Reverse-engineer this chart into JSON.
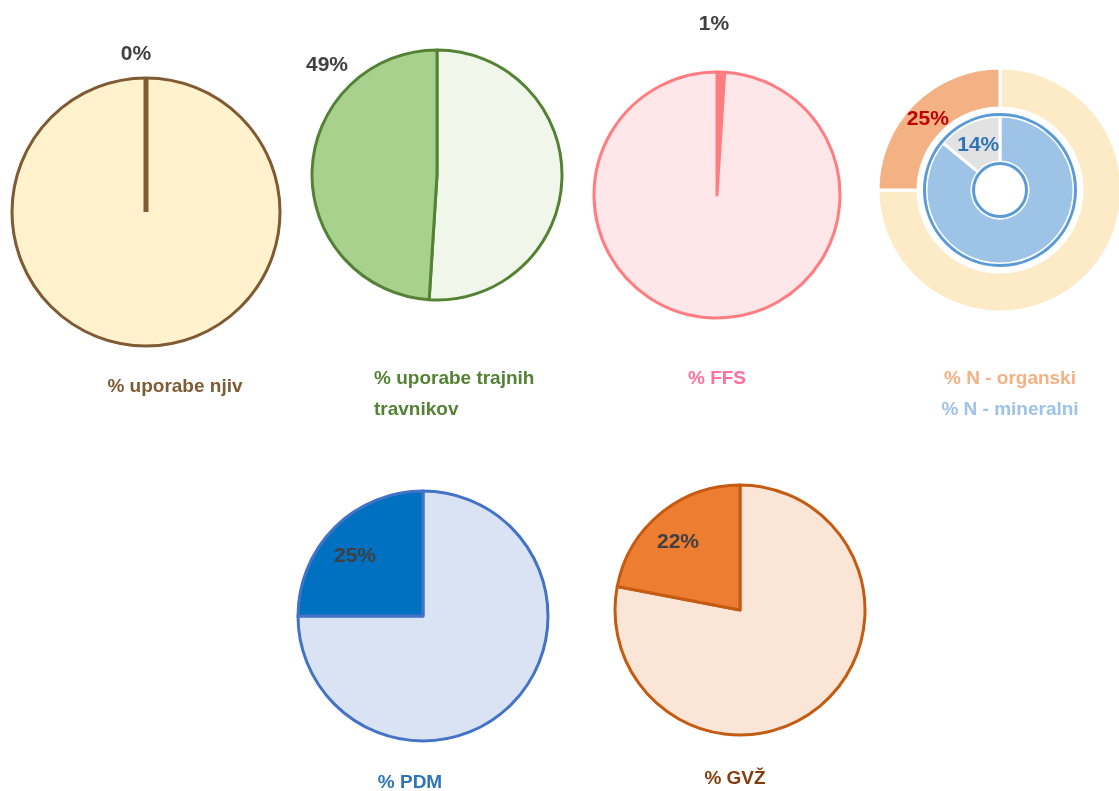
{
  "chart_data": [
    {
      "type": "pie",
      "title": "% uporabe njiv",
      "categories": [
        null,
        null
      ],
      "values": [
        100,
        0
      ],
      "colors": [
        "#fff2cc",
        "#7f5a32"
      ],
      "value_labels": [
        null,
        "0%"
      ]
    },
    {
      "type": "pie",
      "title": "% uporabe trajnih travnikov",
      "categories": [
        null,
        null
      ],
      "values": [
        51,
        49
      ],
      "colors": [
        "#f0f7ea",
        "#a9d18e"
      ],
      "value_labels": [
        null,
        "49%"
      ]
    },
    {
      "type": "pie",
      "title": "% FFS",
      "categories": [
        null,
        null
      ],
      "values": [
        1,
        99
      ],
      "colors": [
        "#ff7c80",
        "#ffe6e8"
      ],
      "value_labels": [
        "1%",
        null
      ]
    },
    {
      "type": "donut",
      "categories": [
        null,
        null
      ],
      "series": [
        {
          "name": "% N - mineralni",
          "colors": [
            "#9dc3e6",
            "#e2e2e2"
          ],
          "values": [
            86,
            14
          ],
          "value_labels": [
            null,
            "14%"
          ]
        },
        {
          "name": "% N - organski",
          "colors": [
            "#fdebc8",
            "#f4b183"
          ],
          "values": [
            75,
            25
          ],
          "value_labels": [
            null,
            "25%"
          ]
        }
      ]
    },
    {
      "type": "pie",
      "title": "% PDM",
      "categories": [
        null,
        null
      ],
      "values": [
        75,
        25
      ],
      "colors": [
        "#dae3f3",
        "#0070c0"
      ],
      "value_labels": [
        null,
        "25%"
      ]
    },
    {
      "type": "pie",
      "title": "% GVŽ",
      "categories": [
        null,
        null
      ],
      "values": [
        78,
        22
      ],
      "colors": [
        "#fbe5d6",
        "#ed7d31"
      ],
      "value_labels": [
        null,
        "22%"
      ]
    }
  ]
}
